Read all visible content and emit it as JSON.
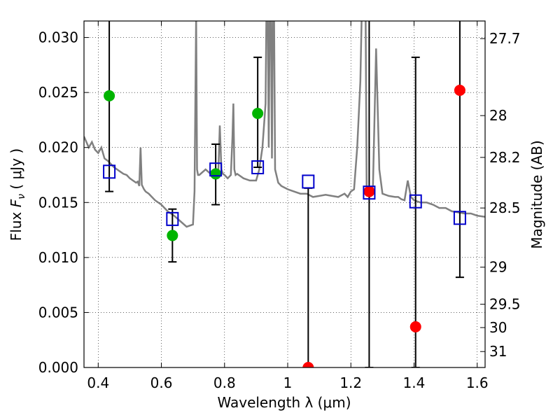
{
  "chart_data": {
    "type": "scatter",
    "title": "",
    "xlabel": "Wavelength  λ (μm)",
    "ylabel": "Flux  F_ν  ( μJy )",
    "ylabel_parts": {
      "pre": "Flux  ",
      "sym": "F",
      "sub": "ν",
      "post": "  ( μJy )"
    },
    "y2label": "Magnitude (AB)",
    "xlim": [
      0.355,
      1.625
    ],
    "ylim": [
      0.0,
      0.0315
    ],
    "grid": true,
    "x_ticks": [
      {
        "value": 0.4,
        "label": "0.4"
      },
      {
        "value": 0.6,
        "label": "0.6"
      },
      {
        "value": 0.8,
        "label": "0.8"
      },
      {
        "value": 1.0,
        "label": "1"
      },
      {
        "value": 1.2,
        "label": "1.2"
      },
      {
        "value": 1.4,
        "label": "1.4"
      },
      {
        "value": 1.6,
        "label": "1.6"
      }
    ],
    "y_ticks": [
      {
        "value": 0.0,
        "label": "0.000"
      },
      {
        "value": 0.005,
        "label": "0.005"
      },
      {
        "value": 0.01,
        "label": "0.010"
      },
      {
        "value": 0.015,
        "label": "0.015"
      },
      {
        "value": 0.02,
        "label": "0.020"
      },
      {
        "value": 0.025,
        "label": "0.025"
      },
      {
        "value": 0.03,
        "label": "0.030"
      }
    ],
    "y2_ticks": [
      {
        "flux": 0.0299,
        "label": "27.7"
      },
      {
        "flux": 0.0229,
        "label": "28"
      },
      {
        "flux": 0.0191,
        "label": "28.2"
      },
      {
        "flux": 0.0145,
        "label": "28.5"
      },
      {
        "flux": 0.00912,
        "label": "29"
      },
      {
        "flux": 0.00575,
        "label": "29.5"
      },
      {
        "flux": 0.00363,
        "label": "30"
      },
      {
        "flux": 0.00145,
        "label": "31"
      }
    ],
    "model_spectrum": {
      "color": "#808080",
      "x": [
        0.355,
        0.37,
        0.38,
        0.39,
        0.4,
        0.41,
        0.42,
        0.43,
        0.44,
        0.45,
        0.46,
        0.47,
        0.48,
        0.49,
        0.5,
        0.51,
        0.52,
        0.525,
        0.53,
        0.534,
        0.538,
        0.545,
        0.55,
        0.56,
        0.58,
        0.6,
        0.62,
        0.64,
        0.66,
        0.68,
        0.7,
        0.705,
        0.71,
        0.713,
        0.716,
        0.72,
        0.74,
        0.76,
        0.78,
        0.785,
        0.79,
        0.795,
        0.8,
        0.81,
        0.82,
        0.825,
        0.828,
        0.831,
        0.835,
        0.84,
        0.86,
        0.88,
        0.9,
        0.91,
        0.92,
        0.93,
        0.935,
        0.94,
        0.945,
        0.95,
        0.955,
        0.96,
        0.97,
        0.98,
        1.0,
        1.02,
        1.04,
        1.06,
        1.08,
        1.1,
        1.12,
        1.14,
        1.16,
        1.18,
        1.19,
        1.2,
        1.21,
        1.22,
        1.23,
        1.24,
        1.245,
        1.25,
        1.26,
        1.27,
        1.28,
        1.29,
        1.3,
        1.32,
        1.34,
        1.35,
        1.36,
        1.37,
        1.38,
        1.39,
        1.4,
        1.42,
        1.44,
        1.46,
        1.48,
        1.5,
        1.52,
        1.54,
        1.56,
        1.58,
        1.6,
        1.625
      ],
      "y": [
        0.021,
        0.02,
        0.0205,
        0.0198,
        0.0195,
        0.02,
        0.019,
        0.0188,
        0.0185,
        0.0182,
        0.018,
        0.0178,
        0.0176,
        0.0175,
        0.0172,
        0.017,
        0.0168,
        0.0169,
        0.0165,
        0.02,
        0.0166,
        0.0162,
        0.016,
        0.0158,
        0.0152,
        0.0148,
        0.0142,
        0.0138,
        0.0133,
        0.0128,
        0.013,
        0.016,
        0.032,
        0.018,
        0.0175,
        0.0175,
        0.018,
        0.0175,
        0.0175,
        0.022,
        0.018,
        0.0176,
        0.0175,
        0.0172,
        0.0175,
        0.021,
        0.024,
        0.018,
        0.0175,
        0.0176,
        0.0172,
        0.017,
        0.017,
        0.018,
        0.02,
        0.024,
        0.04,
        0.02,
        0.04,
        0.019,
        0.04,
        0.018,
        0.0168,
        0.0165,
        0.0162,
        0.016,
        0.0158,
        0.0158,
        0.0155,
        0.0156,
        0.0157,
        0.0156,
        0.0155,
        0.0158,
        0.0155,
        0.016,
        0.0162,
        0.02,
        0.026,
        0.04,
        0.04,
        0.016,
        0.0156,
        0.0165,
        0.029,
        0.018,
        0.0158,
        0.0156,
        0.0155,
        0.0155,
        0.0153,
        0.0152,
        0.017,
        0.0155,
        0.0152,
        0.015,
        0.015,
        0.0148,
        0.0145,
        0.0145,
        0.0142,
        0.0141,
        0.014,
        0.014,
        0.0138,
        0.0137
      ]
    },
    "series": [
      {
        "color": "#00b400",
        "marker": "circle",
        "points": [
          {
            "x": 0.435,
            "y": 0.0247
          },
          {
            "x": 0.635,
            "y": 0.012
          },
          {
            "x": 0.772,
            "y": 0.0176
          },
          {
            "x": 0.905,
            "y": 0.0231
          }
        ]
      },
      {
        "color": "#ff0000",
        "marker": "circle",
        "points": [
          {
            "x": 1.065,
            "y": 0.0
          },
          {
            "x": 1.258,
            "y": 0.016
          },
          {
            "x": 1.405,
            "y": 0.0037
          },
          {
            "x": 1.545,
            "y": 0.0252
          }
        ]
      },
      {
        "color": "#0000cc",
        "marker": "open-square",
        "points": [
          {
            "x": 0.435,
            "y": 0.0178
          },
          {
            "x": 0.635,
            "y": 0.0135
          },
          {
            "x": 0.772,
            "y": 0.018
          },
          {
            "x": 0.905,
            "y": 0.0182
          },
          {
            "x": 1.065,
            "y": 0.0169
          },
          {
            "x": 1.258,
            "y": 0.0159
          },
          {
            "x": 1.405,
            "y": 0.0151
          },
          {
            "x": 1.545,
            "y": 0.0136
          }
        ]
      }
    ],
    "error_bars": [
      {
        "x": 0.435,
        "low": 0.016,
        "high": 0.032
      },
      {
        "x": 0.635,
        "low": 0.0096,
        "high": 0.0144
      },
      {
        "x": 0.772,
        "low": 0.0148,
        "high": 0.0203
      },
      {
        "x": 0.905,
        "low": 0.0182,
        "high": 0.0282
      },
      {
        "x": 1.065,
        "low": 0.0,
        "high": 0.0163
      },
      {
        "x": 1.258,
        "low": 0.0,
        "high": 0.032
      },
      {
        "x": 1.405,
        "low": 0.0,
        "high": 0.0282
      },
      {
        "x": 1.545,
        "low": 0.0082,
        "high": 0.032
      }
    ]
  }
}
